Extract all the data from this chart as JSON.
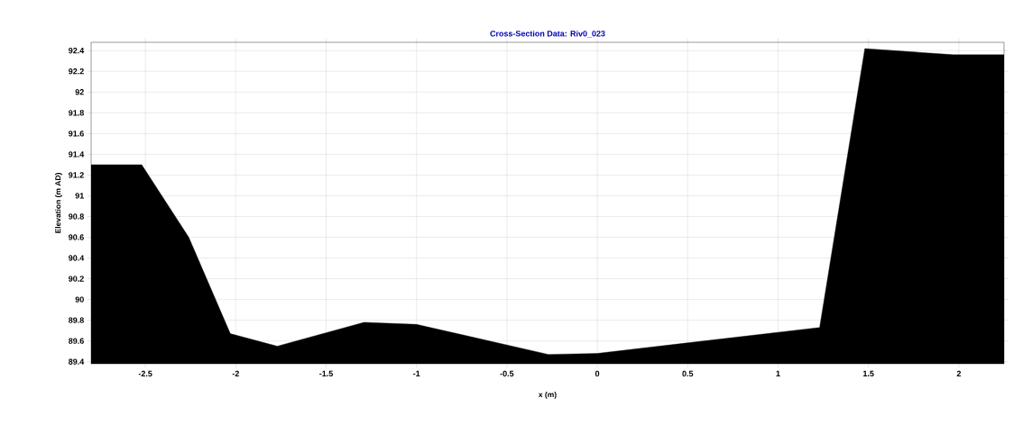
{
  "chart_data": {
    "type": "area",
    "title": "Cross-Section Data: Riv0_023",
    "xlabel": "x (m)",
    "ylabel": "Elevation (m AD)",
    "series": [
      {
        "color": "#000000",
        "x": [
          -2.8,
          -2.52,
          -2.26,
          -2.03,
          -1.77,
          -1.29,
          -1.0,
          -0.27,
          0.0,
          1.23,
          1.48,
          1.97,
          2.25
        ],
        "values": [
          91.3,
          91.3,
          90.6,
          89.67,
          89.55,
          89.78,
          89.76,
          89.47,
          89.48,
          89.73,
          92.42,
          92.36,
          92.36
        ]
      }
    ],
    "xlim": [
      -2.8,
      2.25
    ],
    "ylim": [
      89.38,
      92.48
    ],
    "xticks": [
      -2.5,
      -2,
      -1.5,
      -1,
      -0.5,
      0,
      0.5,
      1,
      1.5,
      2
    ],
    "yticks": [
      89.4,
      89.6,
      89.8,
      90,
      90.2,
      90.4,
      90.6,
      90.8,
      91,
      91.2,
      91.4,
      91.6,
      91.8,
      92,
      92.2,
      92.4
    ],
    "grid": true
  }
}
